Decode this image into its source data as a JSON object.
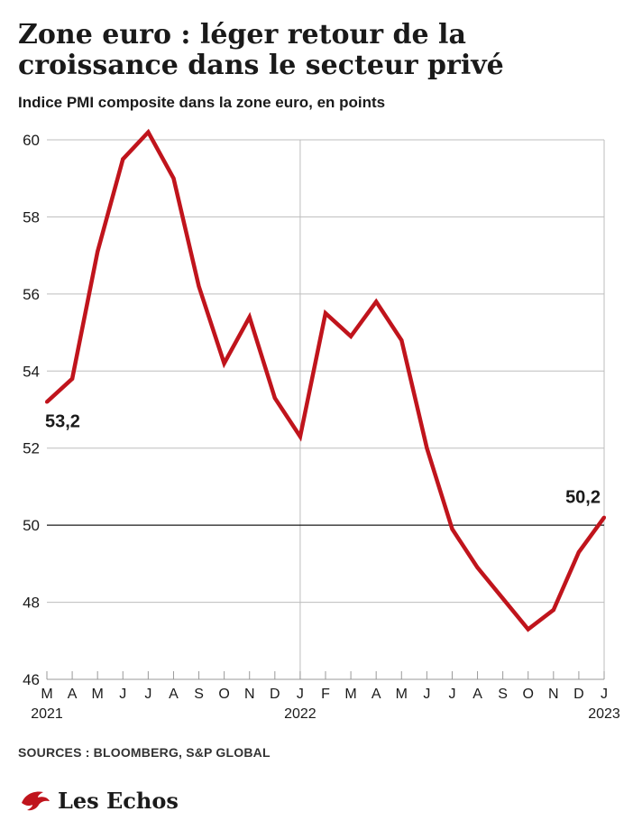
{
  "title": "Zone euro : léger retour de la croissance dans le secteur privé",
  "subtitle": "Indice PMI composite dans la zone euro, en points",
  "sources": "SOURCES : BLOOMBERG, S&P GLOBAL",
  "brand": "Les Echos",
  "colors": {
    "line": "#c0141c",
    "grid": "#bdbdbd",
    "reference": "#1a1a1a",
    "text": "#1a1a1a"
  },
  "chart_data": {
    "type": "line",
    "title": "Zone euro : léger retour de la croissance dans le secteur privé",
    "subtitle": "Indice PMI composite dans la zone euro, en points",
    "x": [
      "2021-03",
      "2021-04",
      "2021-05",
      "2021-06",
      "2021-07",
      "2021-08",
      "2021-09",
      "2021-10",
      "2021-11",
      "2021-12",
      "2022-01",
      "2022-02",
      "2022-03",
      "2022-04",
      "2022-05",
      "2022-06",
      "2022-07",
      "2022-08",
      "2022-09",
      "2022-10",
      "2022-11",
      "2022-12",
      "2023-01"
    ],
    "x_tick_labels": [
      "M",
      "A",
      "M",
      "J",
      "J",
      "A",
      "S",
      "O",
      "N",
      "D",
      "J",
      "F",
      "M",
      "A",
      "M",
      "J",
      "J",
      "A",
      "S",
      "O",
      "N",
      "D",
      "J"
    ],
    "year_labels": [
      {
        "label": "2021",
        "at": "2021-03"
      },
      {
        "label": "2022",
        "at": "2022-01"
      },
      {
        "label": "2023",
        "at": "2023-01"
      }
    ],
    "values": [
      53.2,
      53.8,
      57.1,
      59.5,
      60.2,
      59.0,
      56.2,
      54.2,
      55.4,
      53.3,
      52.3,
      55.5,
      54.9,
      55.8,
      54.8,
      52.0,
      49.9,
      48.9,
      48.1,
      47.3,
      47.8,
      49.3,
      50.2
    ],
    "ylim": [
      46,
      60
    ],
    "y_ticks": [
      46,
      48,
      50,
      52,
      54,
      56,
      58,
      60
    ],
    "reference_line": 50,
    "grid": true,
    "annotations": [
      {
        "label": "53,2",
        "at": "2021-03"
      },
      {
        "label": "50,2",
        "at": "2023-01"
      }
    ],
    "xlabel": "",
    "ylabel": ""
  }
}
